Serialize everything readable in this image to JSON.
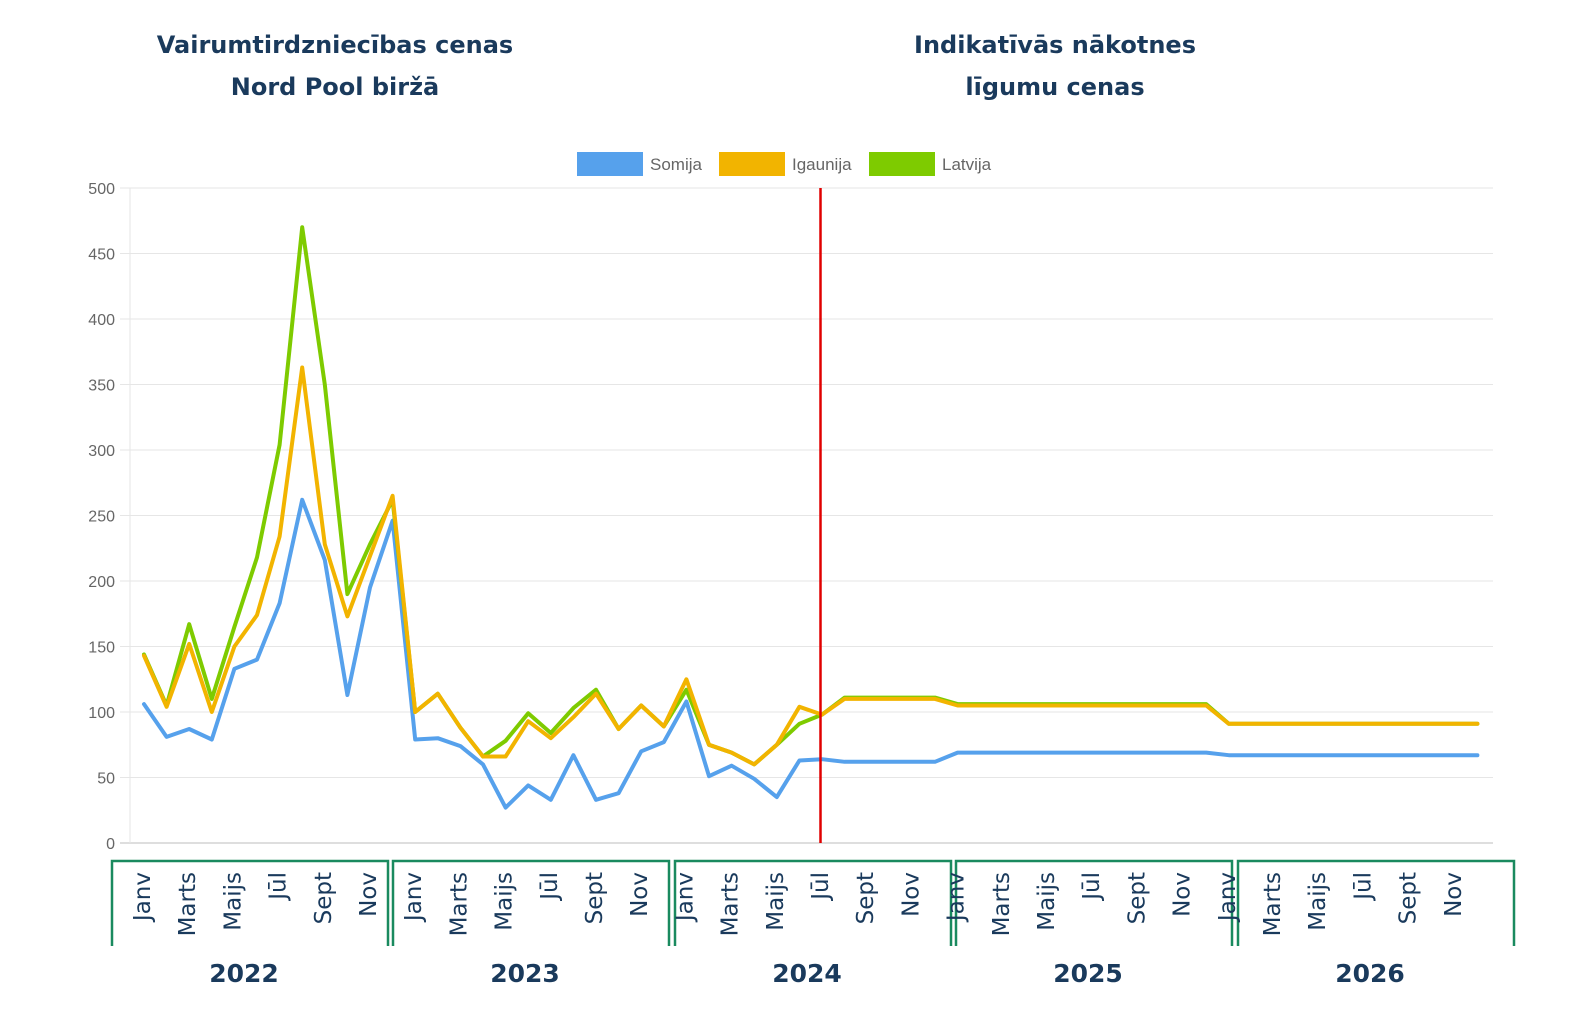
{
  "headings": {
    "left_line1": "Vairumtirdzniecības cenas",
    "left_line2": "Nord Pool biržā",
    "right_line1": "Indikatīvās nākotnes",
    "right_line2": "līgumu cenas"
  },
  "chart_data": {
    "type": "line",
    "title": "",
    "xlabel": "",
    "ylabel": "",
    "ylim": [
      0,
      500
    ],
    "yticks": [
      0,
      50,
      100,
      150,
      200,
      250,
      300,
      350,
      400,
      450,
      500
    ],
    "grid": true,
    "legend_position": "top-center",
    "divider_after_index": 30,
    "divider_color": "#e00000",
    "years": [
      "2022",
      "2023",
      "2024",
      "2025",
      "2026"
    ],
    "month_labels": [
      "Janv",
      "Marts",
      "Maijs",
      "Jūl",
      "Sept",
      "Nov"
    ],
    "series": [
      {
        "name": "Somija",
        "color": "#56a1ec",
        "values": [
          106,
          81,
          87,
          79,
          133,
          140,
          183,
          262,
          216,
          113,
          195,
          246,
          79,
          80,
          74,
          60,
          27,
          44,
          33,
          67,
          33,
          38,
          70,
          77,
          108,
          51,
          59,
          49,
          35,
          63,
          64,
          62,
          62,
          62,
          62,
          62,
          69,
          69,
          69,
          69,
          69,
          69,
          69,
          69,
          69,
          69,
          69,
          69,
          67,
          67,
          67,
          67,
          67,
          67,
          67,
          67,
          67,
          67,
          67,
          67
        ]
      },
      {
        "name": "Igaunija",
        "color": "#f2b400",
        "values": [
          143,
          104,
          152,
          100,
          150,
          174,
          234,
          363,
          228,
          173,
          219,
          265,
          100,
          114,
          88,
          66,
          66,
          93,
          80,
          96,
          114,
          87,
          105,
          89,
          125,
          75,
          69,
          60,
          75,
          104,
          98,
          110,
          110,
          110,
          110,
          110,
          105,
          105,
          105,
          105,
          105,
          105,
          105,
          105,
          105,
          105,
          105,
          105,
          91,
          91,
          91,
          91,
          91,
          91,
          91,
          91,
          91,
          91,
          91,
          91
        ]
      },
      {
        "name": "Latvija",
        "color": "#7ecb00",
        "values": [
          144,
          105,
          167,
          110,
          165,
          218,
          304,
          470,
          350,
          190,
          228,
          262,
          100,
          114,
          88,
          66,
          78,
          99,
          84,
          103,
          117,
          87,
          105,
          89,
          117,
          75,
          69,
          60,
          75,
          91,
          98,
          111,
          111,
          111,
          111,
          111,
          106,
          106,
          106,
          106,
          106,
          106,
          106,
          106,
          106,
          106,
          106,
          106,
          91,
          91,
          91,
          91,
          91,
          91,
          91,
          91,
          91,
          91,
          91,
          91
        ]
      }
    ]
  }
}
